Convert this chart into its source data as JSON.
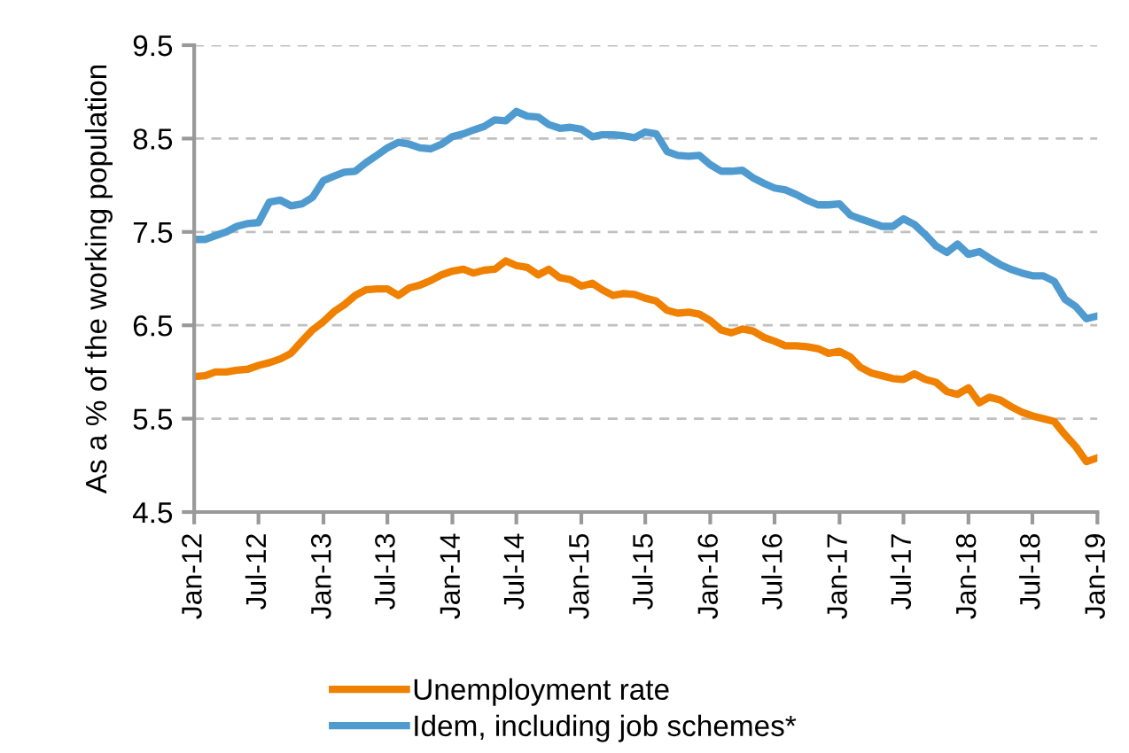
{
  "chart_data": {
    "type": "line",
    "ylabel": "As a % of the working population",
    "x": [
      "2012-01",
      "2012-02",
      "2012-03",
      "2012-04",
      "2012-05",
      "2012-06",
      "2012-07",
      "2012-08",
      "2012-09",
      "2012-10",
      "2012-11",
      "2012-12",
      "2013-01",
      "2013-02",
      "2013-03",
      "2013-04",
      "2013-05",
      "2013-06",
      "2013-07",
      "2013-08",
      "2013-09",
      "2013-10",
      "2013-11",
      "2013-12",
      "2014-01",
      "2014-02",
      "2014-03",
      "2014-04",
      "2014-05",
      "2014-06",
      "2014-07",
      "2014-08",
      "2014-09",
      "2014-10",
      "2014-11",
      "2014-12",
      "2015-01",
      "2015-02",
      "2015-03",
      "2015-04",
      "2015-05",
      "2015-06",
      "2015-07",
      "2015-08",
      "2015-09",
      "2015-10",
      "2015-11",
      "2015-12",
      "2016-01",
      "2016-02",
      "2016-03",
      "2016-04",
      "2016-05",
      "2016-06",
      "2016-07",
      "2016-08",
      "2016-09",
      "2016-10",
      "2016-11",
      "2016-12",
      "2017-01",
      "2017-02",
      "2017-03",
      "2017-04",
      "2017-05",
      "2017-06",
      "2017-07",
      "2017-08",
      "2017-09",
      "2017-10",
      "2017-11",
      "2017-12",
      "2018-01",
      "2018-02",
      "2018-03",
      "2018-04",
      "2018-05",
      "2018-06",
      "2018-07",
      "2018-08",
      "2018-09",
      "2018-10",
      "2018-11",
      "2018-12",
      "2019-01"
    ],
    "series": [
      {
        "name": "Unemployment rate",
        "color": "#f08000",
        "values": [
          5.95,
          5.96,
          6.0,
          6.0,
          6.02,
          6.03,
          6.07,
          6.1,
          6.14,
          6.2,
          6.33,
          6.45,
          6.54,
          6.65,
          6.72,
          6.82,
          6.88,
          6.89,
          6.89,
          6.82,
          6.9,
          6.93,
          6.98,
          7.04,
          7.08,
          7.1,
          7.06,
          7.09,
          7.1,
          7.19,
          7.14,
          7.12,
          7.04,
          7.1,
          7.01,
          6.99,
          6.92,
          6.95,
          6.88,
          6.82,
          6.84,
          6.83,
          6.79,
          6.76,
          6.66,
          6.63,
          6.64,
          6.62,
          6.55,
          6.45,
          6.42,
          6.46,
          6.44,
          6.37,
          6.33,
          6.28,
          6.28,
          6.27,
          6.25,
          6.2,
          6.22,
          6.16,
          6.05,
          5.99,
          5.96,
          5.93,
          5.92,
          5.98,
          5.92,
          5.89,
          5.79,
          5.76,
          5.83,
          5.67,
          5.73,
          5.7,
          5.63,
          5.57,
          5.53,
          5.5,
          5.47,
          5.33,
          5.2,
          5.04,
          5.08
        ]
      },
      {
        "name": "Idem, including job schemes*",
        "color": "#4f9bd0",
        "values": [
          7.42,
          7.42,
          7.46,
          7.5,
          7.56,
          7.59,
          7.6,
          7.82,
          7.84,
          7.78,
          7.8,
          7.87,
          8.05,
          8.1,
          8.14,
          8.15,
          8.24,
          8.32,
          8.4,
          8.46,
          8.44,
          8.4,
          8.39,
          8.44,
          8.52,
          8.55,
          8.59,
          8.63,
          8.7,
          8.69,
          8.79,
          8.74,
          8.73,
          8.65,
          8.61,
          8.62,
          8.6,
          8.52,
          8.54,
          8.54,
          8.53,
          8.51,
          8.57,
          8.55,
          8.36,
          8.32,
          8.31,
          8.32,
          8.22,
          8.15,
          8.15,
          8.16,
          8.08,
          8.02,
          7.97,
          7.95,
          7.9,
          7.84,
          7.79,
          7.79,
          7.8,
          7.68,
          7.64,
          7.6,
          7.56,
          7.56,
          7.64,
          7.58,
          7.47,
          7.35,
          7.28,
          7.37,
          7.26,
          7.29,
          7.22,
          7.15,
          7.1,
          7.06,
          7.03,
          7.03,
          6.97,
          6.78,
          6.7,
          6.57,
          6.6
        ]
      }
    ],
    "xlim": [
      "2012-01",
      "2019-01"
    ],
    "xticks": [
      {
        "value": "2012-01",
        "label": "Jan-12"
      },
      {
        "value": "2012-07",
        "label": "Jul-12"
      },
      {
        "value": "2013-01",
        "label": "Jan-13"
      },
      {
        "value": "2013-07",
        "label": "Jul-13"
      },
      {
        "value": "2014-01",
        "label": "Jan-14"
      },
      {
        "value": "2014-07",
        "label": "Jul-14"
      },
      {
        "value": "2015-01",
        "label": "Jan-15"
      },
      {
        "value": "2015-07",
        "label": "Jul-15"
      },
      {
        "value": "2016-01",
        "label": "Jan-16"
      },
      {
        "value": "2016-07",
        "label": "Jul-16"
      },
      {
        "value": "2017-01",
        "label": "Jan-17"
      },
      {
        "value": "2017-07",
        "label": "Jul-17"
      },
      {
        "value": "2018-01",
        "label": "Jan-18"
      },
      {
        "value": "2018-07",
        "label": "Jul-18"
      },
      {
        "value": "2019-01",
        "label": "Jan-19"
      }
    ],
    "ylim": [
      4.5,
      9.5
    ],
    "yticks": [
      4.5,
      5.5,
      6.5,
      7.5,
      8.5,
      9.5
    ],
    "grid": "y",
    "line_style": "solid",
    "marker": "none",
    "legend": "bottom"
  }
}
